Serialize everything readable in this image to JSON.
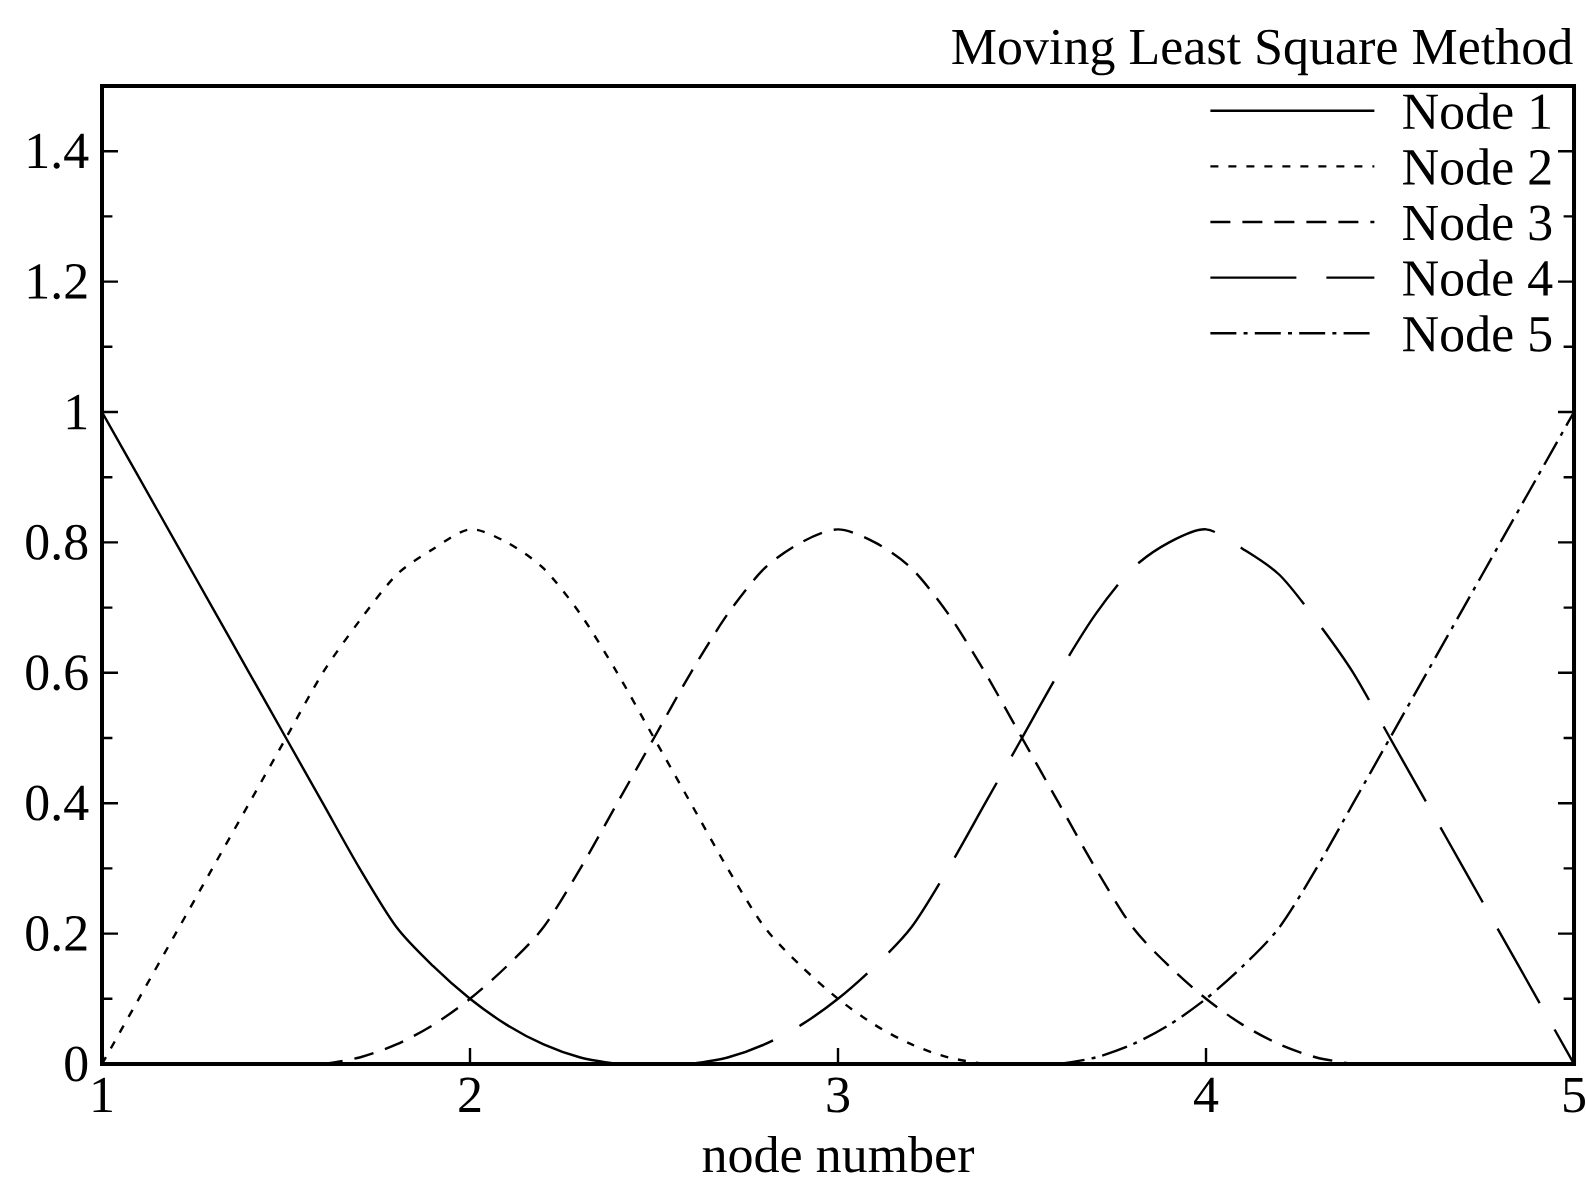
{
  "chart_data": {
    "type": "line",
    "title": "Moving Least Square Method",
    "xlabel": "node number",
    "xlim": [
      1,
      5
    ],
    "ylim": [
      0,
      1.5
    ],
    "xticks": [
      1,
      2,
      3,
      4,
      5
    ],
    "yticks": [
      0,
      {
        "value": 0.1,
        "label": null
      },
      0.2,
      {
        "value": 0.3,
        "label": null
      },
      0.4,
      {
        "value": 0.5,
        "label": null
      },
      0.6,
      {
        "value": 0.7,
        "label": null
      },
      0.8,
      {
        "value": 0.9,
        "label": null
      },
      1,
      {
        "value": 1.1,
        "label": null
      },
      1.2,
      {
        "value": 1.3,
        "label": null
      },
      1.4
    ],
    "legend": "top right",
    "marker": "none",
    "series": [
      {
        "name": "Node 1",
        "color": "#000000",
        "line_style": "solid",
        "x": [
          1.0,
          1.1,
          1.2,
          1.3,
          1.4,
          1.5,
          1.6,
          1.7,
          1.8,
          1.9,
          2.0,
          2.1,
          2.2,
          2.3,
          2.4
        ],
        "values": [
          1.0,
          0.9,
          0.8,
          0.7,
          0.6,
          0.5,
          0.4,
          0.3,
          0.21,
          0.15,
          0.1,
          0.06,
          0.03,
          0.01,
          0
        ]
      },
      {
        "name": "Node 2",
        "color": "#000000",
        "line_style": "dotted",
        "x": [
          1.0,
          1.1,
          1.2,
          1.3,
          1.4,
          1.5,
          1.6,
          1.7,
          1.8,
          1.9,
          2.0,
          2.1,
          2.2,
          2.3,
          2.4,
          2.5,
          2.6,
          2.7,
          2.8,
          2.9,
          3.0,
          3.1,
          3.2,
          3.3,
          3.4
        ],
        "values": [
          0,
          0.1,
          0.2,
          0.3,
          0.4,
          0.5,
          0.6,
          0.68,
          0.75,
          0.79,
          0.82,
          0.8,
          0.76,
          0.69,
          0.6,
          0.5,
          0.4,
          0.3,
          0.21,
          0.15,
          0.1,
          0.06,
          0.03,
          0.01,
          0
        ]
      },
      {
        "name": "Node 3",
        "color": "#000000",
        "line_style": "dashed",
        "x": [
          1.6,
          1.7,
          1.8,
          1.9,
          2.0,
          2.1,
          2.2,
          2.3,
          2.4,
          2.5,
          2.6,
          2.7,
          2.8,
          2.9,
          3.0,
          3.1,
          3.2,
          3.3,
          3.4,
          3.5,
          3.6,
          3.7,
          3.8,
          3.9,
          4.0,
          4.1,
          4.2,
          4.3,
          4.4
        ],
        "values": [
          0,
          0.01,
          0.03,
          0.06,
          0.1,
          0.15,
          0.21,
          0.3,
          0.4,
          0.5,
          0.6,
          0.69,
          0.76,
          0.8,
          0.82,
          0.8,
          0.76,
          0.69,
          0.6,
          0.5,
          0.4,
          0.3,
          0.21,
          0.15,
          0.1,
          0.06,
          0.03,
          0.01,
          0
        ]
      },
      {
        "name": "Node 4",
        "color": "#000000",
        "line_style": "longdashed",
        "x": [
          2.6,
          2.7,
          2.8,
          2.9,
          3.0,
          3.1,
          3.2,
          3.3,
          3.4,
          3.5,
          3.6,
          3.7,
          3.8,
          3.9,
          4.0,
          4.1,
          4.2,
          4.3,
          4.4,
          4.5,
          4.6,
          4.7,
          4.8,
          4.9,
          5.0
        ],
        "values": [
          0,
          0.01,
          0.03,
          0.06,
          0.1,
          0.15,
          0.21,
          0.3,
          0.4,
          0.5,
          0.6,
          0.69,
          0.76,
          0.8,
          0.82,
          0.79,
          0.75,
          0.68,
          0.6,
          0.5,
          0.4,
          0.3,
          0.2,
          0.1,
          0
        ]
      },
      {
        "name": "Node 5",
        "color": "#000000",
        "line_style": "dashdot",
        "x": [
          3.6,
          3.7,
          3.8,
          3.9,
          4.0,
          4.1,
          4.2,
          4.3,
          4.4,
          4.5,
          4.6,
          4.7,
          4.8,
          4.9,
          5.0
        ],
        "values": [
          0,
          0.01,
          0.03,
          0.06,
          0.1,
          0.15,
          0.21,
          0.3,
          0.4,
          0.5,
          0.6,
          0.7,
          0.8,
          0.9,
          1.0
        ]
      }
    ]
  }
}
